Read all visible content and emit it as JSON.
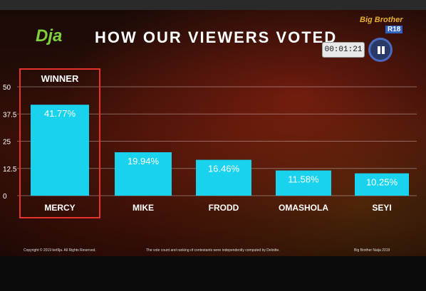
{
  "logo": "Dja",
  "overlay": {
    "brand": "Big Brother",
    "rating": "R18",
    "timer": "00:01:21",
    "pause_icon": "pause-icon"
  },
  "footer": {
    "left": "Copyright © 2019 bet9ja. All Rights Reserved.",
    "middle": "The vote count and ranking of contestants were independently computed by Deloitte.",
    "right": "Big Brother Naija 2019"
  },
  "colors": {
    "bar": "#19d3ee",
    "winner_box": "#e8332a",
    "title": "#ffffff",
    "logo": "#7fcf3a",
    "background": "#2b0d07"
  },
  "chart_data": {
    "type": "bar",
    "title": "HOW OUR VIEWERS VOTED",
    "categories": [
      "MERCY",
      "MIKE",
      "FRODD",
      "OMASHOLA",
      "SEYI"
    ],
    "values": [
      41.77,
      19.94,
      16.46,
      11.58,
      10.25
    ],
    "value_labels": [
      "41.77%",
      "19.94%",
      "16.46%",
      "11.58%",
      "10.25%"
    ],
    "y_ticks": [
      "0",
      "12.5",
      "25",
      "37.5",
      "50"
    ],
    "ylim": [
      0,
      50
    ],
    "grid": true,
    "highlight": {
      "category": "MERCY",
      "label": "WINNER"
    },
    "xlabel": "",
    "ylabel": ""
  }
}
